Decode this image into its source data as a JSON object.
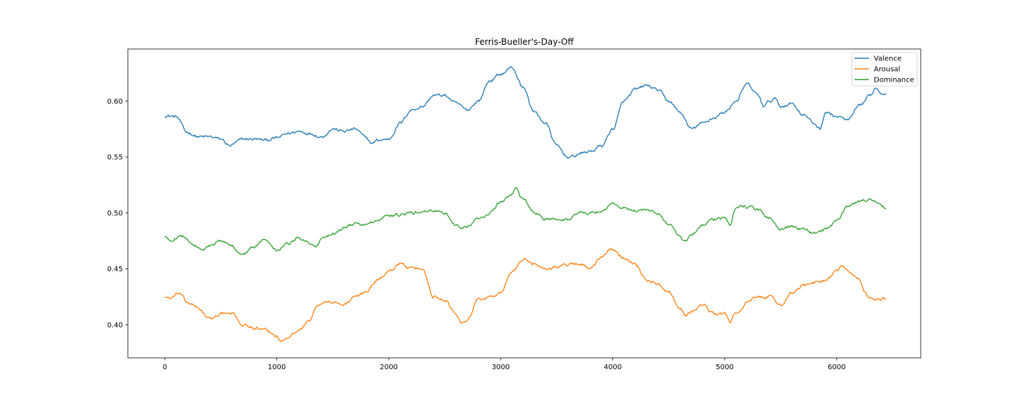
{
  "chart_data": {
    "type": "line",
    "title": "Ferris-Bueller's-Day-Off",
    "xlabel": "",
    "ylabel": "",
    "xlim": [
      -330,
      6750
    ],
    "ylim": [
      0.3705,
      0.6465
    ],
    "x_ticks": [
      0,
      1000,
      2000,
      3000,
      4000,
      5000,
      6000
    ],
    "x_tick_labels": [
      "0",
      "1000",
      "2000",
      "3000",
      "4000",
      "5000",
      "6000"
    ],
    "y_ticks": [
      0.4,
      0.45,
      0.5,
      0.55,
      0.6
    ],
    "y_tick_labels": [
      "0.40",
      "0.45",
      "0.50",
      "0.55",
      "0.60"
    ],
    "grid": false,
    "legend_position": "top-right",
    "series": [
      {
        "name": "Valence",
        "color": "#1f77b4",
        "x": [
          0,
          100,
          200,
          300,
          400,
          500,
          580,
          700,
          800,
          900,
          1000,
          1100,
          1200,
          1300,
          1400,
          1500,
          1600,
          1700,
          1800,
          1850,
          1900,
          2000,
          2100,
          2200,
          2300,
          2400,
          2500,
          2600,
          2700,
          2800,
          2900,
          3000,
          3100,
          3200,
          3300,
          3400,
          3500,
          3600,
          3640,
          3700,
          3800,
          3900,
          4000,
          4100,
          4200,
          4300,
          4400,
          4500,
          4600,
          4700,
          4800,
          4900,
          5000,
          5100,
          5200,
          5300,
          5350,
          5400,
          5450,
          5500,
          5600,
          5700,
          5800,
          5850,
          5900,
          6000,
          6100,
          6200,
          6300,
          6350,
          6400,
          6440
        ],
        "values": [
          0.587,
          0.586,
          0.572,
          0.568,
          0.568,
          0.566,
          0.56,
          0.566,
          0.566,
          0.565,
          0.567,
          0.571,
          0.573,
          0.571,
          0.568,
          0.575,
          0.573,
          0.575,
          0.567,
          0.562,
          0.565,
          0.566,
          0.58,
          0.592,
          0.595,
          0.605,
          0.605,
          0.598,
          0.592,
          0.6,
          0.618,
          0.624,
          0.63,
          0.612,
          0.59,
          0.58,
          0.56,
          0.55,
          0.55,
          0.553,
          0.555,
          0.56,
          0.575,
          0.6,
          0.61,
          0.614,
          0.61,
          0.6,
          0.59,
          0.575,
          0.58,
          0.585,
          0.59,
          0.6,
          0.615,
          0.605,
          0.595,
          0.6,
          0.602,
          0.595,
          0.598,
          0.588,
          0.58,
          0.575,
          0.59,
          0.586,
          0.583,
          0.595,
          0.605,
          0.612,
          0.607,
          0.607
        ]
      },
      {
        "name": "Arousal",
        "color": "#ff7f0e",
        "x": [
          0,
          50,
          130,
          200,
          300,
          400,
          500,
          600,
          700,
          800,
          900,
          1000,
          1030,
          1100,
          1200,
          1300,
          1350,
          1400,
          1500,
          1600,
          1700,
          1800,
          1900,
          2000,
          2100,
          2200,
          2300,
          2400,
          2500,
          2600,
          2650,
          2700,
          2800,
          2900,
          3000,
          3100,
          3200,
          3300,
          3400,
          3500,
          3600,
          3700,
          3800,
          3900,
          3980,
          4100,
          4200,
          4300,
          4400,
          4500,
          4600,
          4650,
          4700,
          4800,
          4900,
          5000,
          5050,
          5100,
          5200,
          5300,
          5400,
          5500,
          5600,
          5700,
          5800,
          5900,
          6000,
          6050,
          6100,
          6200,
          6250,
          6300,
          6440
        ],
        "values": [
          0.425,
          0.424,
          0.428,
          0.42,
          0.415,
          0.405,
          0.41,
          0.41,
          0.4,
          0.397,
          0.395,
          0.39,
          0.385,
          0.39,
          0.395,
          0.405,
          0.415,
          0.42,
          0.42,
          0.418,
          0.425,
          0.43,
          0.44,
          0.448,
          0.455,
          0.45,
          0.45,
          0.425,
          0.423,
          0.41,
          0.403,
          0.405,
          0.423,
          0.425,
          0.428,
          0.448,
          0.458,
          0.455,
          0.45,
          0.452,
          0.454,
          0.455,
          0.45,
          0.46,
          0.468,
          0.46,
          0.455,
          0.44,
          0.437,
          0.43,
          0.415,
          0.408,
          0.412,
          0.418,
          0.41,
          0.41,
          0.403,
          0.41,
          0.42,
          0.425,
          0.425,
          0.418,
          0.428,
          0.435,
          0.438,
          0.44,
          0.448,
          0.452,
          0.448,
          0.44,
          0.43,
          0.423,
          0.423
        ]
      },
      {
        "name": "Dominance",
        "color": "#2ca02c",
        "x": [
          0,
          50,
          150,
          200,
          300,
          350,
          400,
          500,
          600,
          700,
          800,
          900,
          1000,
          1100,
          1200,
          1300,
          1350,
          1400,
          1500,
          1600,
          1700,
          1800,
          1900,
          2000,
          2100,
          2200,
          2300,
          2400,
          2500,
          2600,
          2650,
          2700,
          2800,
          2900,
          3000,
          3100,
          3130,
          3200,
          3300,
          3400,
          3500,
          3600,
          3700,
          3800,
          3900,
          4000,
          4100,
          4200,
          4300,
          4400,
          4500,
          4600,
          4650,
          4700,
          4800,
          4900,
          5000,
          5050,
          5100,
          5200,
          5300,
          5400,
          5500,
          5600,
          5700,
          5800,
          5900,
          6000,
          6100,
          6200,
          6300,
          6400,
          6440
        ],
        "values": [
          0.478,
          0.476,
          0.48,
          0.475,
          0.47,
          0.468,
          0.47,
          0.476,
          0.47,
          0.463,
          0.47,
          0.477,
          0.467,
          0.473,
          0.478,
          0.473,
          0.47,
          0.476,
          0.482,
          0.487,
          0.49,
          0.49,
          0.493,
          0.497,
          0.498,
          0.5,
          0.501,
          0.502,
          0.5,
          0.49,
          0.486,
          0.488,
          0.495,
          0.5,
          0.51,
          0.517,
          0.522,
          0.512,
          0.5,
          0.494,
          0.495,
          0.494,
          0.5,
          0.5,
          0.502,
          0.508,
          0.505,
          0.502,
          0.502,
          0.5,
          0.49,
          0.478,
          0.474,
          0.48,
          0.49,
          0.494,
          0.495,
          0.49,
          0.505,
          0.505,
          0.503,
          0.495,
          0.485,
          0.488,
          0.485,
          0.482,
          0.485,
          0.493,
          0.506,
          0.51,
          0.513,
          0.506,
          0.504
        ]
      }
    ]
  }
}
